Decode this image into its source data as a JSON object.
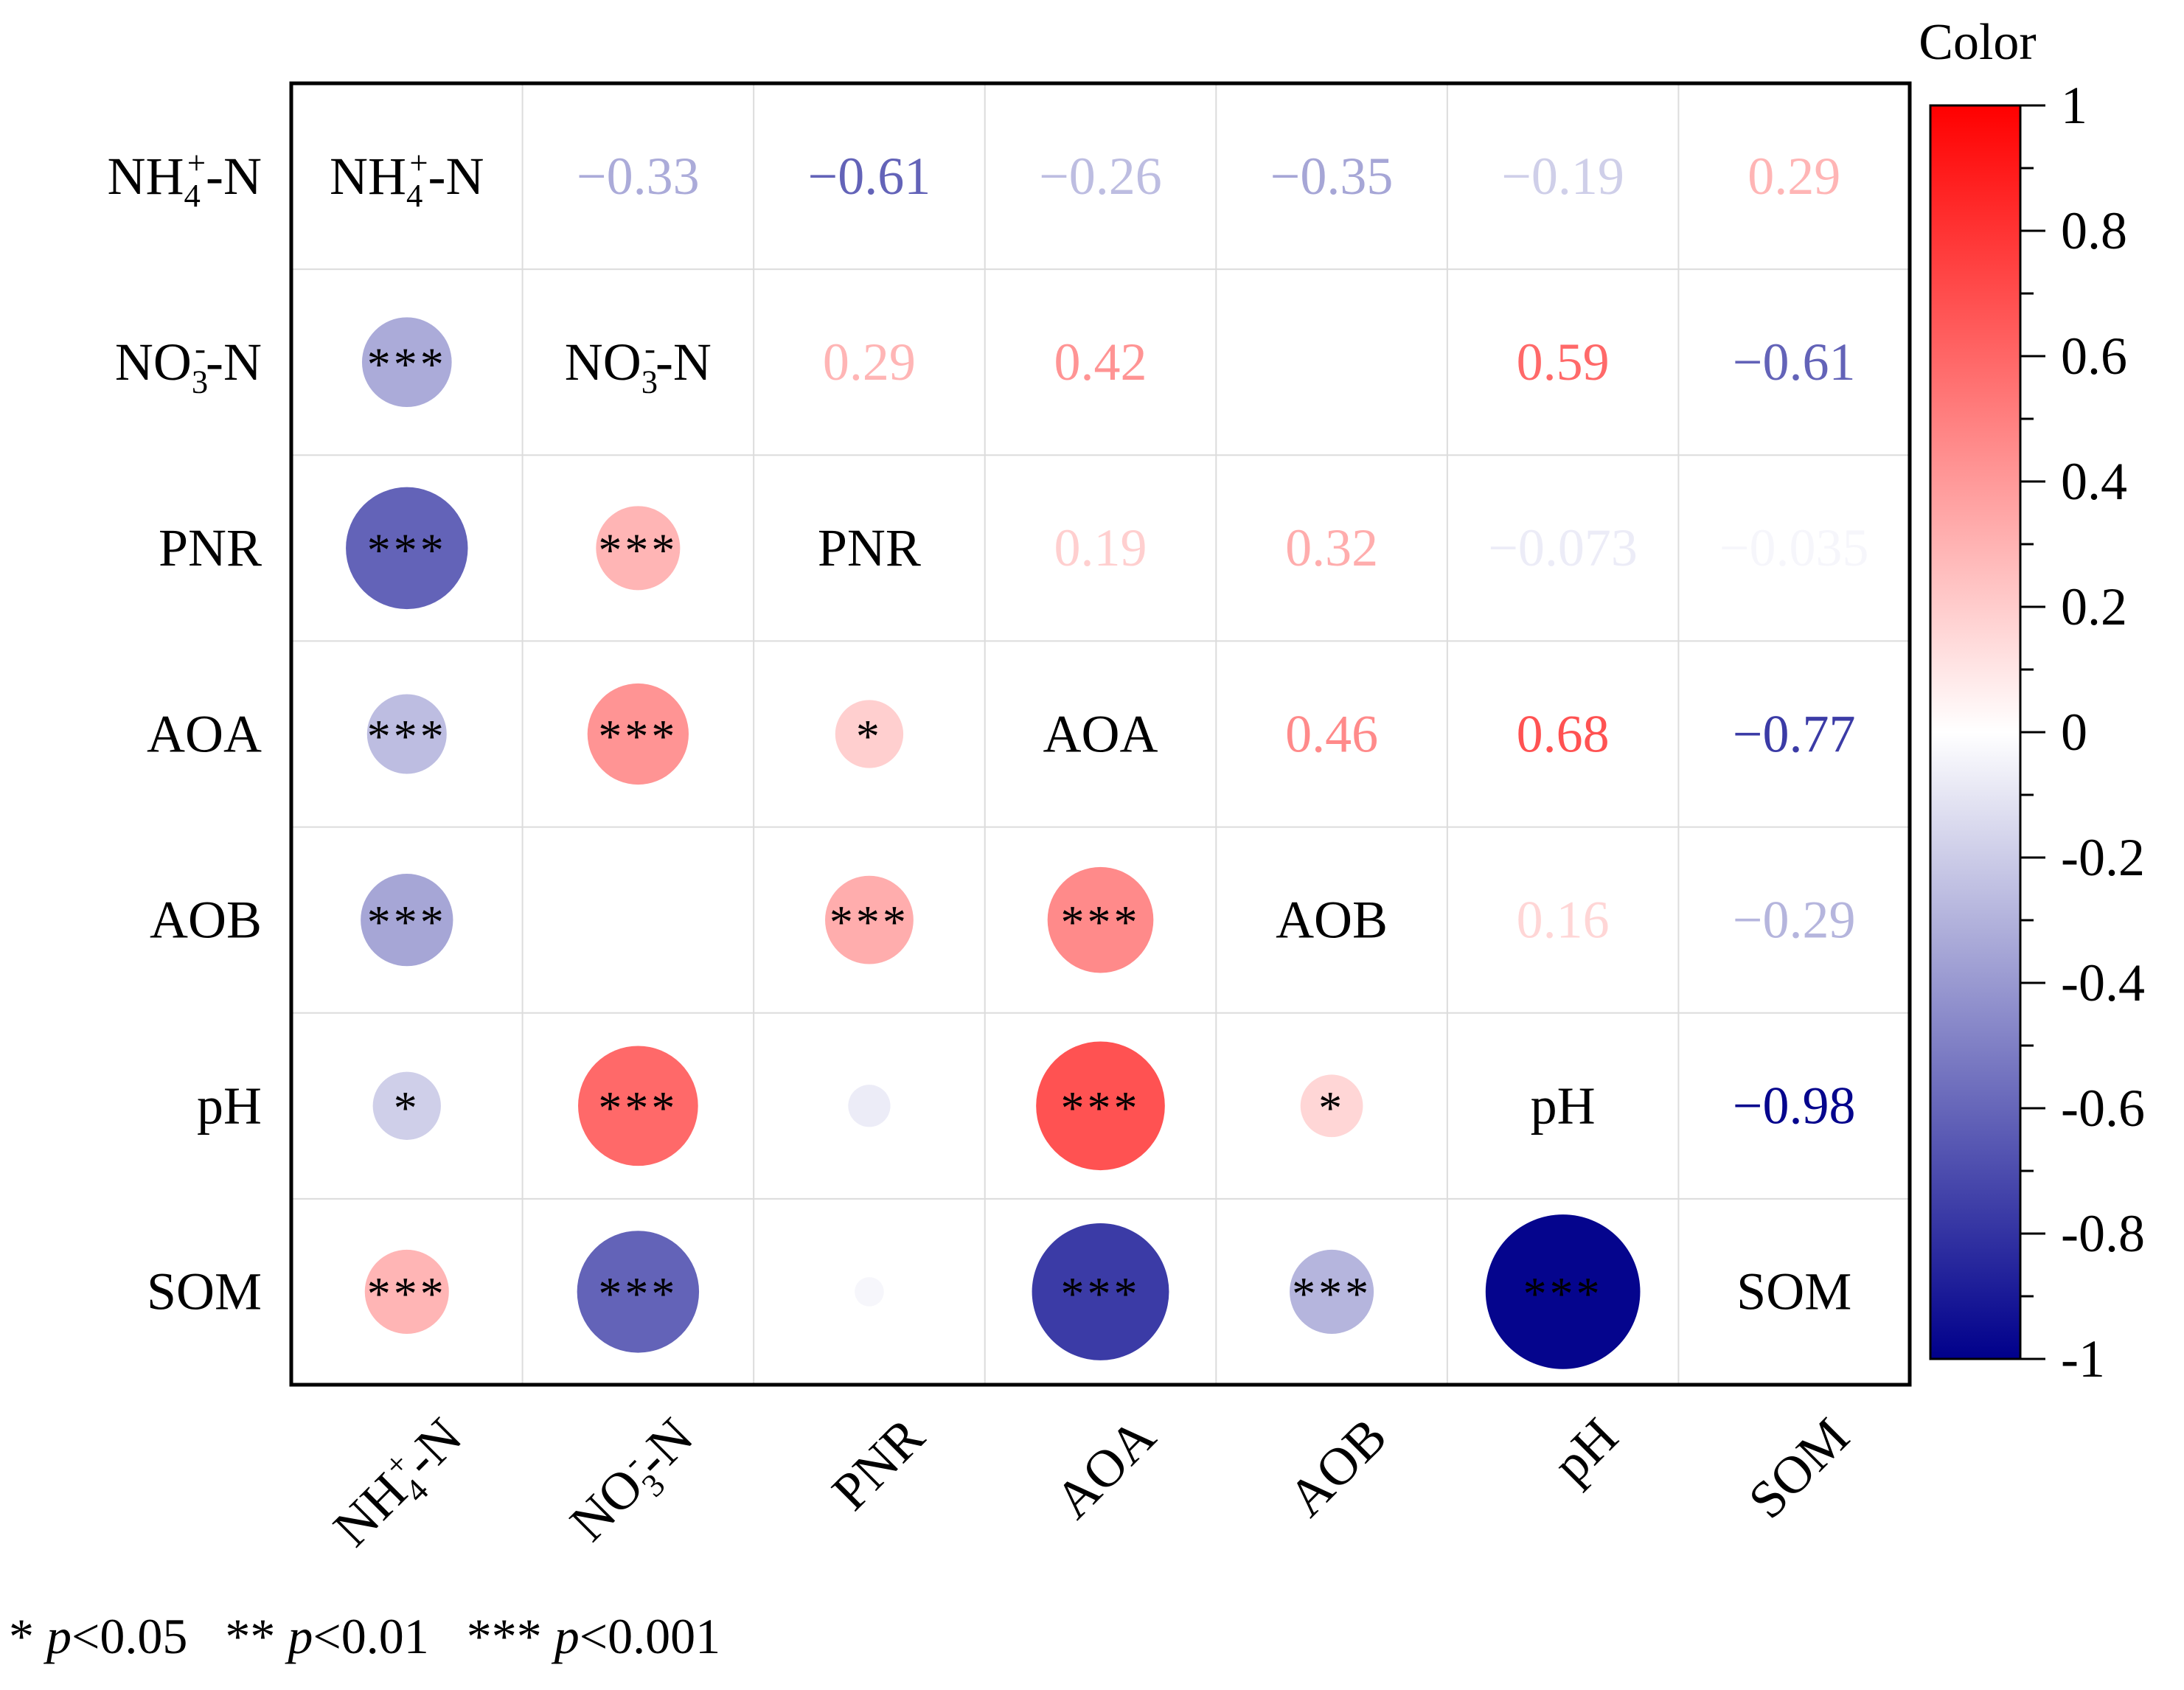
{
  "chart_data": {
    "type": "heatmap",
    "subtype": "correlation-matrix",
    "variables": [
      {
        "base": "NH",
        "sub": "4",
        "sup": "+",
        "suffix": "-N"
      },
      {
        "base": "NO",
        "sub": "3",
        "sup": "-",
        "suffix": "-N"
      },
      {
        "base": "PNR"
      },
      {
        "base": "AOA"
      },
      {
        "base": "AOB"
      },
      {
        "base": "pH"
      },
      {
        "base": "SOM"
      }
    ],
    "upper_labels": [
      [
        null,
        "-0.33",
        "-0.61",
        "-0.26",
        "-0.35",
        "-0.19",
        "0.29"
      ],
      [
        null,
        null,
        "0.29",
        "0.42",
        "",
        "0.59",
        "-0.61"
      ],
      [
        null,
        null,
        null,
        "0.19",
        "0.32",
        "-0.073",
        "-0.035"
      ],
      [
        null,
        null,
        null,
        null,
        "0.46",
        "0.68",
        "-0.77"
      ],
      [
        null,
        null,
        null,
        null,
        null,
        "0.16",
        "-0.29"
      ],
      [
        null,
        null,
        null,
        null,
        null,
        null,
        "-0.98"
      ]
    ],
    "matrix": [
      [
        1,
        -0.33,
        -0.61,
        -0.26,
        -0.35,
        -0.19,
        0.29
      ],
      [
        -0.33,
        1,
        0.29,
        0.42,
        0.0,
        0.59,
        -0.61
      ],
      [
        -0.61,
        0.29,
        1,
        0.19,
        0.32,
        -0.073,
        -0.035
      ],
      [
        -0.26,
        0.42,
        0.19,
        1,
        0.46,
        0.68,
        -0.77
      ],
      [
        -0.35,
        0.0,
        0.32,
        0.46,
        1,
        0.16,
        -0.29
      ],
      [
        -0.19,
        0.59,
        -0.073,
        0.68,
        0.16,
        1,
        -0.98
      ],
      [
        0.29,
        -0.61,
        -0.035,
        -0.77,
        -0.29,
        -0.98,
        1
      ]
    ],
    "significance": [
      [
        "",
        "***",
        "***",
        "***",
        "***",
        "*",
        "***"
      ],
      [
        "***",
        "",
        "***",
        "***",
        "",
        "***",
        "***"
      ],
      [
        "***",
        "***",
        "",
        "*",
        "***",
        "",
        ""
      ],
      [
        "***",
        "***",
        "*",
        "",
        "***",
        "***",
        "***"
      ],
      [
        "***",
        "",
        "***",
        "***",
        "",
        "*",
        "***"
      ],
      [
        "*",
        "***",
        "",
        "***",
        "*",
        "",
        "***"
      ],
      [
        "***",
        "***",
        "",
        "***",
        "***",
        "***",
        ""
      ]
    ],
    "colorbar": {
      "title": "Color",
      "range": [
        -1,
        1
      ],
      "ticks": [
        "1",
        "0.8",
        "0.6",
        "0.4",
        "0.2",
        "0",
        "-0.2",
        "-0.4",
        "-0.6",
        "-0.8",
        "-1"
      ],
      "colors": {
        "negative": "#00008b",
        "zero": "#ffffff",
        "positive": "#ff0000"
      }
    }
  },
  "footnote": {
    "one_star": "*",
    "two_star": "**",
    "three_star": "***",
    "p_symbol": "p",
    "one_value": "<0.05",
    "two_value": "<0.01",
    "three_value": "<0.001"
  }
}
